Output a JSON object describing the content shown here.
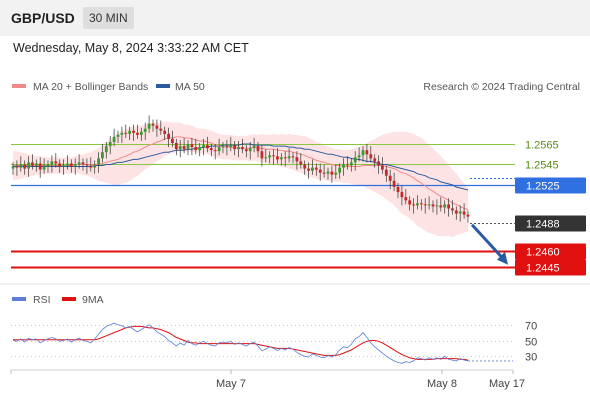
{
  "header": {
    "symbol": "GBP/USD",
    "timeframe": "30 MIN",
    "timestamp": "Wednesday, May 8, 2024 3:33:22 AM CET"
  },
  "legend": {
    "ma20_label": "MA 20 + Bollinger Bands",
    "ma50_label": "MA 50",
    "credit": "Research © 2024 Trading Central",
    "ma20_color": "#f08a8a",
    "ma50_color": "#2c5aa0"
  },
  "rsi_legend": {
    "rsi_label": "RSI",
    "ma9_label": "9MA",
    "rsi_color": "#5b7fd6",
    "ma9_color": "#e01010"
  },
  "chart_data": [
    {
      "type": "line",
      "title": "",
      "xlabel": "",
      "ylabel": "",
      "x_ticks": [
        "May 7",
        "May 8",
        "May 17"
      ],
      "ylim": [
        1.2432,
        1.2612
      ],
      "grid": false,
      "legend_position": "top-left",
      "levels": [
        {
          "label": "1.2565",
          "value": 1.2565,
          "kind": "resistance",
          "color": "#8cc63f"
        },
        {
          "label": "1.2545",
          "value": 1.2545,
          "kind": "resistance",
          "color": "#8cc63f"
        },
        {
          "label": "1.2525",
          "value": 1.2525,
          "kind": "pivot",
          "color": "#2f6fe0"
        },
        {
          "label": "1.2488",
          "value": 1.2488,
          "kind": "last_price",
          "color": "#333333"
        },
        {
          "label": "1.2460",
          "value": 1.246,
          "kind": "target",
          "color": "#e01010"
        },
        {
          "label": "1.2445",
          "value": 1.2445,
          "kind": "target",
          "color": "#e01010"
        }
      ],
      "price_close": [
        1.2543,
        1.2542,
        1.2545,
        1.2541,
        1.2547,
        1.2544,
        1.2546,
        1.254,
        1.2543,
        1.2545,
        1.2548,
        1.2546,
        1.2543,
        1.2544,
        1.2546,
        1.2543,
        1.2545,
        1.2547,
        1.2545,
        1.2544,
        1.2542,
        1.2545,
        1.2551,
        1.2557,
        1.2563,
        1.2567,
        1.2572,
        1.2574,
        1.2576,
        1.2575,
        1.2578,
        1.2576,
        1.2574,
        1.2577,
        1.258,
        1.2585,
        1.2583,
        1.258,
        1.2578,
        1.2575,
        1.257,
        1.2566,
        1.256,
        1.2563,
        1.256,
        1.2565,
        1.2562,
        1.2559,
        1.2562,
        1.2564,
        1.2561,
        1.2559,
        1.2558,
        1.2562,
        1.2563,
        1.2562,
        1.2564,
        1.256,
        1.2562,
        1.256,
        1.2558,
        1.2561,
        1.2563,
        1.2558,
        1.2551,
        1.2552,
        1.2554,
        1.2553,
        1.255,
        1.2552,
        1.2551,
        1.2553,
        1.2552,
        1.2548,
        1.2545,
        1.2541,
        1.2539,
        1.2542,
        1.254,
        1.2537,
        1.2536,
        1.2538,
        1.2535,
        1.2537,
        1.2542,
        1.2545,
        1.2544,
        1.2547,
        1.2552,
        1.2554,
        1.2559,
        1.2555,
        1.2551,
        1.2548,
        1.2544,
        1.254,
        1.2534,
        1.2529,
        1.2523,
        1.2518,
        1.2513,
        1.251,
        1.2506,
        1.2505,
        1.2507,
        1.2506,
        1.2505,
        1.2506,
        1.2504,
        1.2505,
        1.2503,
        1.2506,
        1.2502,
        1.25,
        1.2497,
        1.2499,
        1.2496,
        1.2494
      ],
      "ma20": [
        1.2544,
        1.2544,
        1.2544,
        1.2544,
        1.2544,
        1.2544,
        1.2544,
        1.2544,
        1.2544,
        1.2544,
        1.2544,
        1.2544,
        1.2544,
        1.2544,
        1.2544,
        1.2544,
        1.2545,
        1.2545,
        1.2545,
        1.2545,
        1.2545,
        1.2545,
        1.2545,
        1.2546,
        1.2547,
        1.2548,
        1.2549,
        1.255,
        1.2552,
        1.2553,
        1.2555,
        1.2557,
        1.2558,
        1.256,
        1.2562,
        1.2564,
        1.2565,
        1.2567,
        1.2568,
        1.257,
        1.2571,
        1.2571,
        1.2572,
        1.2572,
        1.2571,
        1.2571,
        1.257,
        1.2569,
        1.2568,
        1.2568,
        1.2567,
        1.2566,
        1.2564,
        1.2563,
        1.2562,
        1.2562,
        1.2562,
        1.2561,
        1.2561,
        1.2561,
        1.2561,
        1.2561,
        1.2562,
        1.2561,
        1.2561,
        1.256,
        1.256,
        1.256,
        1.2559,
        1.2559,
        1.2558,
        1.2558,
        1.2557,
        1.2556,
        1.2555,
        1.2554,
        1.2552,
        1.2551,
        1.2549,
        1.2548,
        1.2547,
        1.2546,
        1.2545,
        1.2544,
        1.2544,
        1.2543,
        1.2543,
        1.2543,
        1.2543,
        1.2543,
        1.2544,
        1.2544,
        1.2544,
        1.2544,
        1.2544,
        1.2544,
        1.2543,
        1.2542,
        1.2541,
        1.2539,
        1.2537,
        1.2536,
        1.2534,
        1.2532,
        1.2529,
        1.2527,
        1.2524,
        1.2521,
        1.2519,
        1.2516,
        1.2514,
        1.2512,
        1.251,
        1.2507,
        1.2506,
        1.2504,
        1.2502,
        1.2501
      ],
      "ma50": [
        1.2543,
        1.2543,
        1.2543,
        1.2543,
        1.2543,
        1.2543,
        1.2543,
        1.2543,
        1.2543,
        1.2543,
        1.2543,
        1.2543,
        1.2543,
        1.2543,
        1.2543,
        1.2543,
        1.2543,
        1.2543,
        1.2543,
        1.2543,
        1.2543,
        1.2544,
        1.2544,
        1.2544,
        1.2545,
        1.2545,
        1.2546,
        1.2547,
        1.2547,
        1.2548,
        1.2549,
        1.255,
        1.255,
        1.2551,
        1.2552,
        1.2553,
        1.2554,
        1.2555,
        1.2556,
        1.2557,
        1.2557,
        1.2558,
        1.2559,
        1.2559,
        1.2559,
        1.256,
        1.256,
        1.2561,
        1.2561,
        1.2562,
        1.2562,
        1.2563,
        1.2563,
        1.2563,
        1.2564,
        1.2564,
        1.2564,
        1.2564,
        1.2564,
        1.2565,
        1.2565,
        1.2565,
        1.2564,
        1.2564,
        1.2564,
        1.2564,
        1.2564,
        1.2563,
        1.2563,
        1.2563,
        1.2563,
        1.2562,
        1.2562,
        1.2561,
        1.2561,
        1.256,
        1.256,
        1.2559,
        1.2558,
        1.2557,
        1.2556,
        1.2555,
        1.2555,
        1.2554,
        1.2553,
        1.2552,
        1.2552,
        1.2551,
        1.255,
        1.255,
        1.2549,
        1.2548,
        1.2548,
        1.2547,
        1.2546,
        1.2545,
        1.2545,
        1.2544,
        1.2543,
        1.2542,
        1.2541,
        1.254,
        1.2539,
        1.2538,
        1.2536,
        1.2535,
        1.2534,
        1.2532,
        1.2531,
        1.253,
        1.2528,
        1.2527,
        1.2526,
        1.2525,
        1.2523,
        1.2522,
        1.2521,
        1.252
      ],
      "bollinger_halfwidth": [
        0.0014,
        0.0014,
        0.0013,
        0.0012,
        0.0011,
        0.001,
        0.0009,
        0.0009,
        0.0008,
        0.0008,
        0.0008,
        0.0008,
        0.0008,
        0.0008,
        0.0008,
        0.0008,
        0.0008,
        0.0009,
        0.001,
        0.0011,
        0.0012,
        0.0014,
        0.0016,
        0.0018,
        0.002,
        0.0022,
        0.0024,
        0.0025,
        0.0026,
        0.0026,
        0.0026,
        0.0025,
        0.0024,
        0.0023,
        0.0022,
        0.0021,
        0.002,
        0.0019,
        0.0018,
        0.0017,
        0.0016,
        0.0015,
        0.0014,
        0.0014,
        0.0013,
        0.0013,
        0.0013,
        0.0012,
        0.0012,
        0.0012,
        0.0012,
        0.0012,
        0.0012,
        0.0012,
        0.0012,
        0.0012,
        0.0012,
        0.0012,
        0.0012,
        0.0012,
        0.0012,
        0.0013,
        0.0013,
        0.0013,
        0.0014,
        0.0014,
        0.0014,
        0.0015,
        0.0015,
        0.0016,
        0.0016,
        0.0017,
        0.0017,
        0.0018,
        0.0018,
        0.0019,
        0.0019,
        0.0019,
        0.0018,
        0.0018,
        0.0017,
        0.0017,
        0.0016,
        0.0016,
        0.0016,
        0.0016,
        0.0016,
        0.0017,
        0.0018,
        0.0019,
        0.002,
        0.0022,
        0.0024,
        0.0026,
        0.0028,
        0.003,
        0.0032,
        0.0034,
        0.0036,
        0.0038,
        0.004,
        0.0041,
        0.0042,
        0.0043,
        0.0044,
        0.0044,
        0.0044,
        0.0043,
        0.0042,
        0.0041,
        0.0039,
        0.0037,
        0.0035,
        0.0033,
        0.003,
        0.0027,
        0.0024,
        0.0021
      ],
      "projection_arrow": {
        "from": 1.2488,
        "to": 1.2445
      }
    },
    {
      "type": "line",
      "title": "",
      "xlabel": "",
      "ylabel": "",
      "ylim": [
        15,
        85
      ],
      "y_ticks": [
        "70",
        "50",
        "30"
      ],
      "y_tick_values": [
        70,
        50,
        30
      ],
      "grid": true,
      "series": [
        {
          "name": "RSI",
          "values": [
            50,
            49,
            52,
            48,
            53,
            51,
            52,
            47,
            50,
            52,
            54,
            52,
            49,
            50,
            52,
            48,
            51,
            53,
            50,
            49,
            47,
            52,
            58,
            64,
            68,
            70,
            72,
            70,
            69,
            66,
            68,
            64,
            61,
            64,
            67,
            70,
            66,
            61,
            58,
            55,
            50,
            47,
            43,
            47,
            44,
            50,
            46,
            44,
            47,
            49,
            46,
            44,
            43,
            47,
            48,
            47,
            49,
            45,
            47,
            45,
            43,
            46,
            48,
            43,
            37,
            39,
            42,
            40,
            37,
            40,
            38,
            41,
            39,
            35,
            32,
            30,
            29,
            33,
            31,
            29,
            28,
            31,
            29,
            32,
            38,
            42,
            41,
            45,
            52,
            55,
            60,
            54,
            47,
            42,
            38,
            34,
            30,
            27,
            24,
            22,
            21,
            23,
            22,
            24,
            28,
            27,
            25,
            28,
            26,
            28,
            26,
            30,
            26,
            25,
            24,
            27,
            25,
            24
          ]
        },
        {
          "name": "9MA",
          "values": [
            51,
            51,
            51,
            51,
            51,
            51,
            51,
            51,
            51,
            51,
            51,
            51,
            51,
            51,
            51,
            51,
            51,
            51,
            51,
            51,
            51,
            51,
            52,
            54,
            56,
            58,
            60,
            62,
            64,
            66,
            67,
            68,
            68,
            68,
            67,
            66,
            66,
            65,
            64,
            62,
            60,
            57,
            54,
            52,
            50,
            48,
            47,
            47,
            46,
            46,
            46,
            46,
            46,
            46,
            46,
            46,
            46,
            46,
            46,
            46,
            46,
            46,
            46,
            45,
            44,
            43,
            42,
            41,
            40,
            40,
            40,
            40,
            39,
            38,
            37,
            36,
            35,
            34,
            33,
            32,
            31,
            31,
            31,
            31,
            32,
            34,
            36,
            38,
            41,
            44,
            47,
            49,
            50,
            50,
            49,
            47,
            44,
            41,
            38,
            35,
            32,
            30,
            28,
            27,
            26,
            26,
            26,
            26,
            26,
            27,
            27,
            27,
            27,
            27,
            27,
            26,
            26,
            25
          ]
        }
      ]
    }
  ]
}
